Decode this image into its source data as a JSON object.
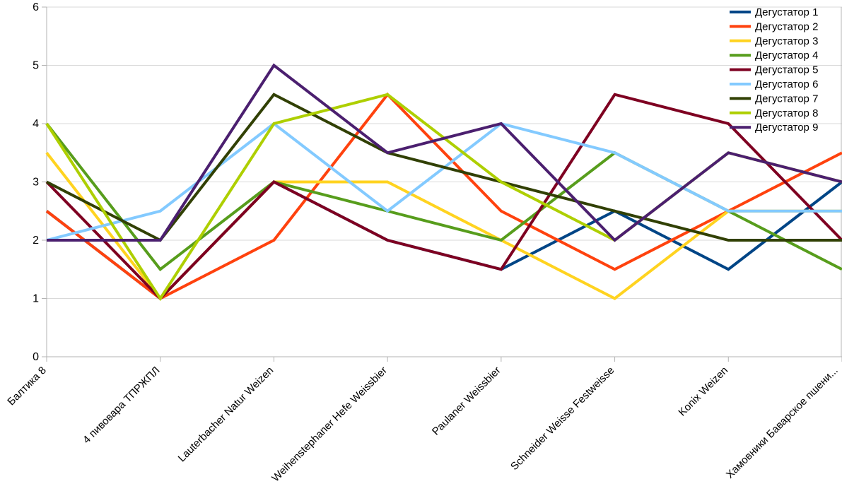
{
  "chart_data": {
    "type": "line",
    "title": "",
    "xlabel": "",
    "ylabel": "",
    "categories": [
      "Балтика 8",
      "4 пивовара ТПРЖПЛ",
      "Lauterbacher Natur Weizen",
      "Weihenstephaner Hefe Weissbier",
      "Paulaner Weissbier",
      "Schneider Weisse Festweisse",
      "Konix Weizen",
      "Хамовники Баварское пшени..."
    ],
    "series": [
      {
        "name": "Дегустатор 1",
        "color": "#004586",
        "values": [
          2.5,
          1,
          3,
          2,
          1.5,
          2.5,
          1.5,
          3
        ]
      },
      {
        "name": "Дегустатор 2",
        "color": "#FF420E",
        "values": [
          2.5,
          1,
          2,
          4.5,
          2.5,
          1.5,
          2.5,
          3.5
        ]
      },
      {
        "name": "Дегустатор 3",
        "color": "#FFD320",
        "values": [
          3.5,
          1,
          3,
          3,
          2,
          1,
          2.5,
          2.5
        ]
      },
      {
        "name": "Дегустатор 4",
        "color": "#579D1C",
        "values": [
          4,
          1.5,
          3,
          2.5,
          2,
          3.5,
          2.5,
          1.5
        ]
      },
      {
        "name": "Дегустатор 5",
        "color": "#7E0021",
        "values": [
          3,
          1,
          3,
          2,
          1.5,
          4.5,
          4,
          2
        ]
      },
      {
        "name": "Дегустатор 6",
        "color": "#83CAFF",
        "values": [
          2,
          2.5,
          4,
          2.5,
          4,
          3.5,
          2.5,
          2.5
        ]
      },
      {
        "name": "Дегустатор 7",
        "color": "#314004",
        "values": [
          3,
          2,
          4.5,
          3.5,
          3,
          2.5,
          2,
          2
        ]
      },
      {
        "name": "Дегустатор 8",
        "color": "#AECF00",
        "values": [
          4,
          1,
          4,
          4.5,
          3,
          2,
          3.5,
          3
        ]
      },
      {
        "name": "Дегустатор 9",
        "color": "#4B1F6F",
        "values": [
          2,
          2,
          5,
          3.5,
          4,
          2,
          3.5,
          3
        ]
      }
    ],
    "yticks": [
      "0",
      "1",
      "2",
      "3",
      "4",
      "5",
      "6"
    ],
    "ylim": [
      0,
      6
    ],
    "grid": true,
    "legend_position": "top-right",
    "grid_color": "#d9d9d9",
    "axis_color": "#b3b3b3",
    "line_width": 4
  }
}
